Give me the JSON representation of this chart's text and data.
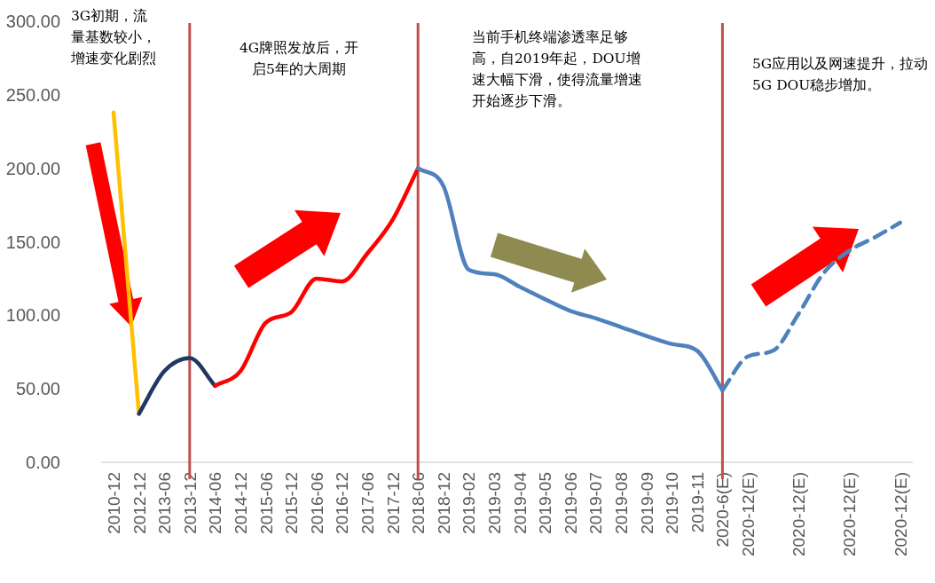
{
  "chart_data": {
    "type": "line",
    "categories": [
      "2010-12",
      "2012-12",
      "2013-06",
      "2013-12",
      "2014-06",
      "2014-12",
      "2015-06",
      "2015-12",
      "2016-06",
      "2016-12",
      "2017-06",
      "2017-12",
      "2018-06",
      "2018-12",
      "2019-02",
      "2019-03",
      "2019-04",
      "2019-05",
      "2019-06",
      "2019-07",
      "2019-08",
      "2019-09",
      "2019-10",
      "2019-11",
      "2020-6(E)",
      "2020-12(E)",
      null,
      "2020-12(E)",
      null,
      "2020-12(E)",
      null,
      "2020-12(E)"
    ],
    "series": [
      {
        "color": "#ffc000",
        "line_style": "solid",
        "values": [
          238,
          33,
          null,
          null,
          null,
          null,
          null,
          null,
          null,
          null,
          null,
          null,
          null,
          null,
          null,
          null,
          null,
          null,
          null,
          null,
          null,
          null,
          null,
          null,
          null,
          null,
          null,
          null,
          null,
          null,
          null,
          null
        ]
      },
      {
        "color": "#1f3864",
        "line_style": "solid",
        "values": [
          null,
          33,
          62,
          71,
          52,
          null,
          null,
          null,
          null,
          null,
          null,
          null,
          null,
          null,
          null,
          null,
          null,
          null,
          null,
          null,
          null,
          null,
          null,
          null,
          null,
          null,
          null,
          null,
          null,
          null,
          null,
          null
        ]
      },
      {
        "color": "#ff0000",
        "line_style": "solid",
        "values": [
          null,
          null,
          null,
          null,
          52,
          62,
          95,
          102,
          125,
          123,
          142,
          165,
          200,
          null,
          null,
          null,
          null,
          null,
          null,
          null,
          null,
          null,
          null,
          null,
          null,
          null,
          null,
          null,
          null,
          null,
          null,
          null
        ]
      },
      {
        "color": "#4f81bd",
        "line_style": "solid",
        "values": [
          null,
          null,
          null,
          null,
          null,
          null,
          null,
          null,
          null,
          null,
          null,
          null,
          200,
          188,
          131,
          128,
          119.5,
          111,
          103,
          98,
          92,
          86,
          80.5,
          76,
          49,
          null,
          null,
          null,
          null,
          null,
          null,
          null
        ]
      },
      {
        "color": "#4f81bd",
        "line_style": "dashed",
        "values": [
          null,
          null,
          null,
          null,
          null,
          null,
          null,
          null,
          null,
          null,
          null,
          null,
          null,
          null,
          null,
          null,
          null,
          null,
          null,
          null,
          null,
          null,
          null,
          null,
          49,
          72,
          76,
          101,
          129,
          144,
          153,
          163
        ]
      }
    ],
    "ylim": [
      0,
      300
    ],
    "yticks": [
      {
        "value": 0,
        "label": "0.00"
      },
      {
        "value": 50,
        "label": "50.00"
      },
      {
        "value": 100,
        "label": "100.00"
      },
      {
        "value": 150,
        "label": "150.00"
      },
      {
        "value": 200,
        "label": "200.00"
      },
      {
        "value": 250,
        "label": "250.00"
      },
      {
        "value": 300,
        "label": "300.00"
      }
    ],
    "ref_lines": [
      {
        "axis": "x",
        "value": "2013-12",
        "color": "#c0504d"
      },
      {
        "axis": "x",
        "value": "2018-06",
        "color": "#c0504d"
      },
      {
        "axis": "x",
        "value": "2020-6(E)",
        "color": "#c0504d"
      }
    ],
    "annotations": [
      "3G初期，流量基数较小，增速变化剧烈",
      "4G牌照发放后，开启5年的大周期",
      "当前手机终端渗透率足够高，自2019年起，DOU增速大幅下滑，使得流量增速开始逐步下滑。",
      "5G应用以及网速提升，拉动5G DOU稳步增加。"
    ],
    "grid": false
  }
}
